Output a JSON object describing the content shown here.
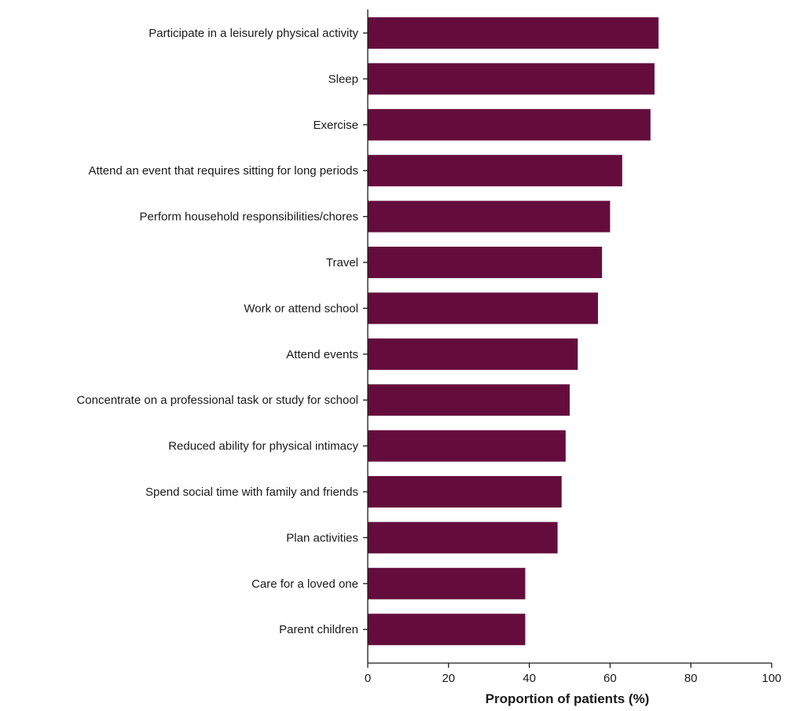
{
  "chart_data": {
    "type": "bar",
    "orientation": "horizontal",
    "title": "",
    "xlabel": "Proportion of patients (%)",
    "ylabel": "",
    "xlim": [
      0,
      100
    ],
    "xticks": [
      0,
      20,
      40,
      60,
      80,
      100
    ],
    "grid": false,
    "legend": "none",
    "bar_color": "#640d3c",
    "categories": [
      "Participate in a leisurely physical activity",
      "Sleep",
      "Exercise",
      "Attend an event that requires sitting for long periods",
      "Perform household responsibilities/chores",
      "Travel",
      "Work or attend school",
      "Attend events",
      "Concentrate on a professional task or study for school",
      "Reduced ability for physical intimacy",
      "Spend social time with family and friends",
      "Plan activities",
      "Care for a loved one",
      "Parent children"
    ],
    "values": [
      72,
      71,
      70,
      63,
      60,
      58,
      57,
      52,
      50,
      49,
      48,
      47,
      39,
      39
    ]
  }
}
